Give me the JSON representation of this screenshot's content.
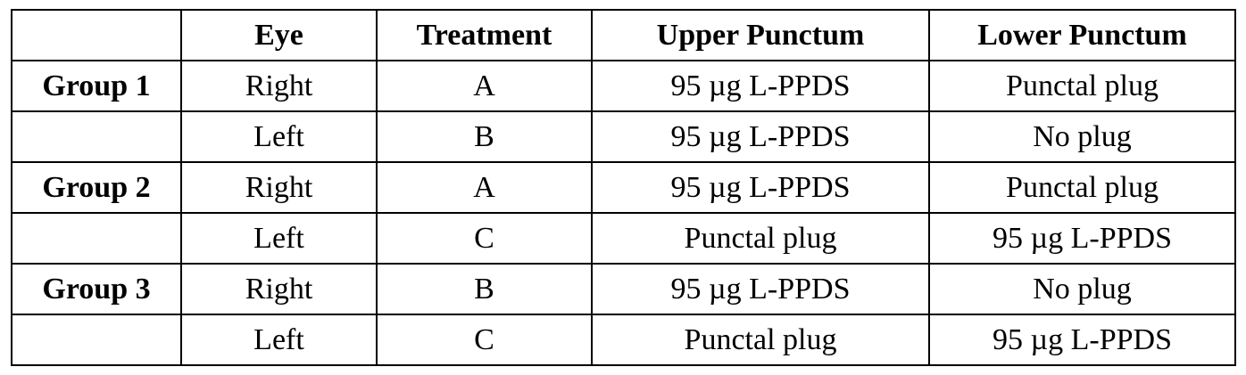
{
  "table": {
    "headers": [
      "",
      "Eye",
      "Treatment",
      "Upper Punctum",
      "Lower Punctum"
    ],
    "rows": [
      {
        "group": "Group 1",
        "eye": "Right",
        "treatment": "A",
        "upper": "95 µg L-PPDS",
        "lower": "Punctal plug"
      },
      {
        "group": "",
        "eye": "Left",
        "treatment": "B",
        "upper": "95 µg L-PPDS",
        "lower": "No plug"
      },
      {
        "group": "Group 2",
        "eye": "Right",
        "treatment": "A",
        "upper": "95 µg L-PPDS",
        "lower": "Punctal plug"
      },
      {
        "group": "",
        "eye": "Left",
        "treatment": "C",
        "upper": "Punctal plug",
        "lower": "95 µg L-PPDS"
      },
      {
        "group": "Group 3",
        "eye": "Right",
        "treatment": "B",
        "upper": "95 µg L-PPDS",
        "lower": "No plug"
      },
      {
        "group": "",
        "eye": "Left",
        "treatment": "C",
        "upper": "Punctal plug",
        "lower": "95 µg L-PPDS"
      }
    ]
  }
}
